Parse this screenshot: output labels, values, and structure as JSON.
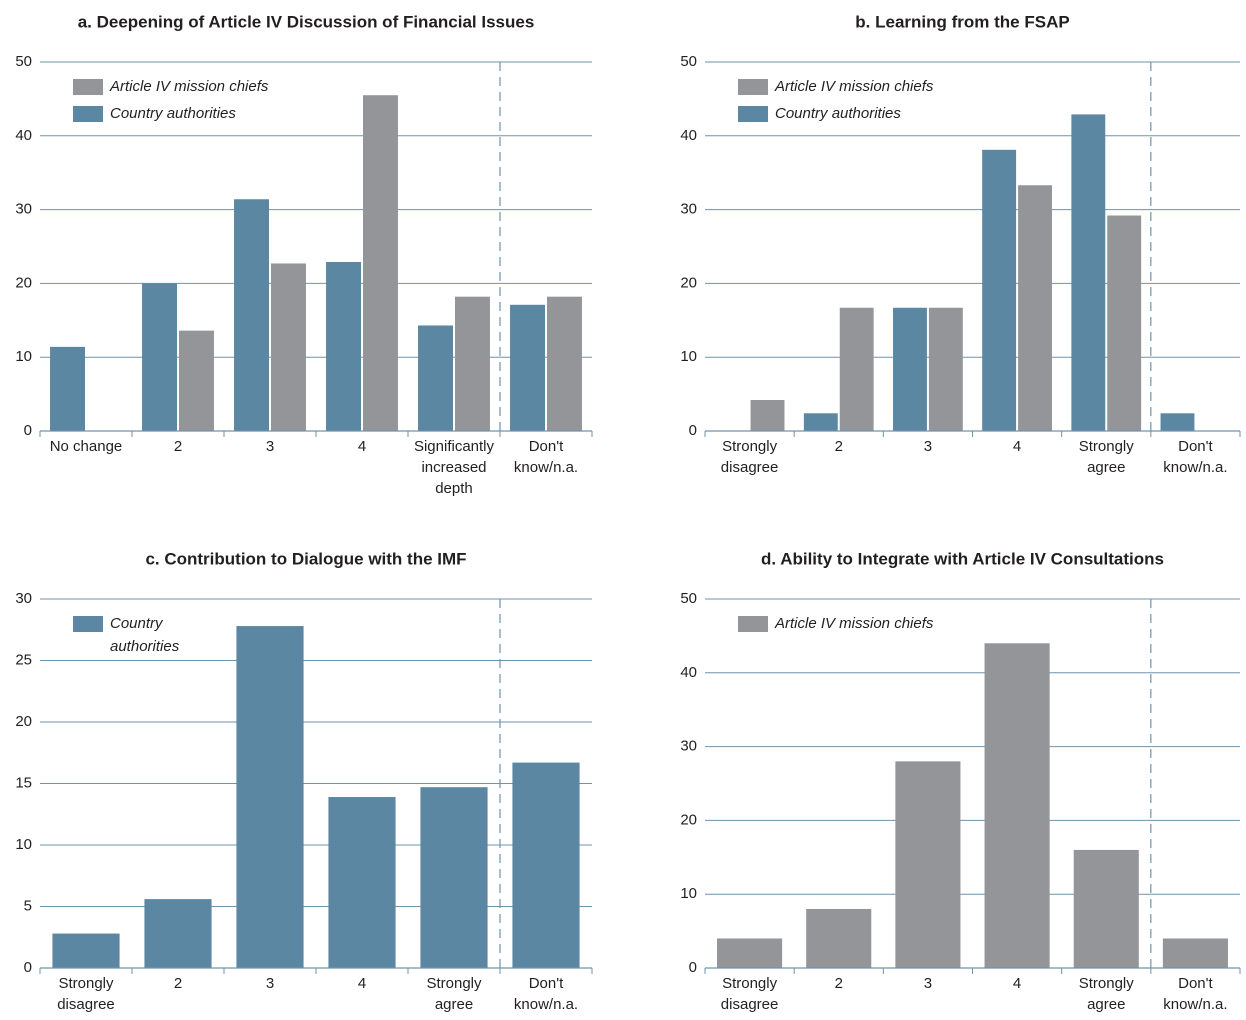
{
  "chart_data": [
    {
      "type": "bar",
      "title": "a. Deepening of Article IV Discussion of Financial Issues",
      "categories": [
        "No change",
        "2",
        "3",
        "4",
        "Significantly\nincreased\ndepth",
        "Don't\nknow/n.a."
      ],
      "series": [
        {
          "name": "Country authorities",
          "color": "#5b87a2",
          "values": [
            11.4,
            20,
            31.4,
            22.9,
            14.3,
            17.1
          ]
        },
        {
          "name": "Article IV mission chiefs",
          "color": "#939598",
          "values": [
            0,
            13.6,
            22.7,
            45.5,
            18.2,
            18.2
          ]
        }
      ],
      "legend_order": [
        "Article IV mission chiefs",
        "Country authorities"
      ],
      "ylim": [
        0,
        50
      ],
      "yticks": [
        0,
        10,
        20,
        30,
        40,
        50
      ],
      "grid": true
    },
    {
      "type": "bar",
      "title": "b. Learning from the FSAP",
      "categories": [
        "Strongly\ndisagree",
        "2",
        "3",
        "4",
        "Strongly\nagree",
        "Don't\nknow/n.a."
      ],
      "series": [
        {
          "name": "Country authorities",
          "color": "#5b87a2",
          "values": [
            0,
            2.4,
            16.7,
            38.1,
            42.9,
            2.4
          ]
        },
        {
          "name": "Article IV mission chiefs",
          "color": "#939598",
          "values": [
            4.2,
            16.7,
            16.7,
            33.3,
            29.2,
            0
          ]
        }
      ],
      "legend_order": [
        "Article IV mission chiefs",
        "Country authorities"
      ],
      "ylim": [
        0,
        50
      ],
      "yticks": [
        0,
        10,
        20,
        30,
        40,
        50
      ],
      "grid": true
    },
    {
      "type": "bar",
      "title": "c. Contribution to Dialogue with the IMF",
      "categories": [
        "Strongly\ndisagree",
        "2",
        "3",
        "4",
        "Strongly\nagree",
        "Don't\nknow/n.a."
      ],
      "series": [
        {
          "name": "Country\nauthorities",
          "color": "#5b87a2",
          "values": [
            2.8,
            5.6,
            27.8,
            13.9,
            14.7,
            16.7
          ]
        }
      ],
      "ylim": [
        0,
        30
      ],
      "yticks": [
        0,
        5,
        10,
        15,
        20,
        25,
        30
      ],
      "grid": true
    },
    {
      "type": "bar",
      "title": "d. Ability to Integrate with Article IV Consultations",
      "categories": [
        "Strongly\ndisagree",
        "2",
        "3",
        "4",
        "Strongly\nagree",
        "Don't\nknow/n.a."
      ],
      "series": [
        {
          "name": "Article IV mission chiefs",
          "color": "#939598",
          "values": [
            4,
            8,
            28,
            44,
            16,
            4
          ]
        }
      ],
      "ylim": [
        0,
        50
      ],
      "yticks": [
        0,
        10,
        20,
        30,
        40,
        50
      ],
      "grid": true
    }
  ]
}
